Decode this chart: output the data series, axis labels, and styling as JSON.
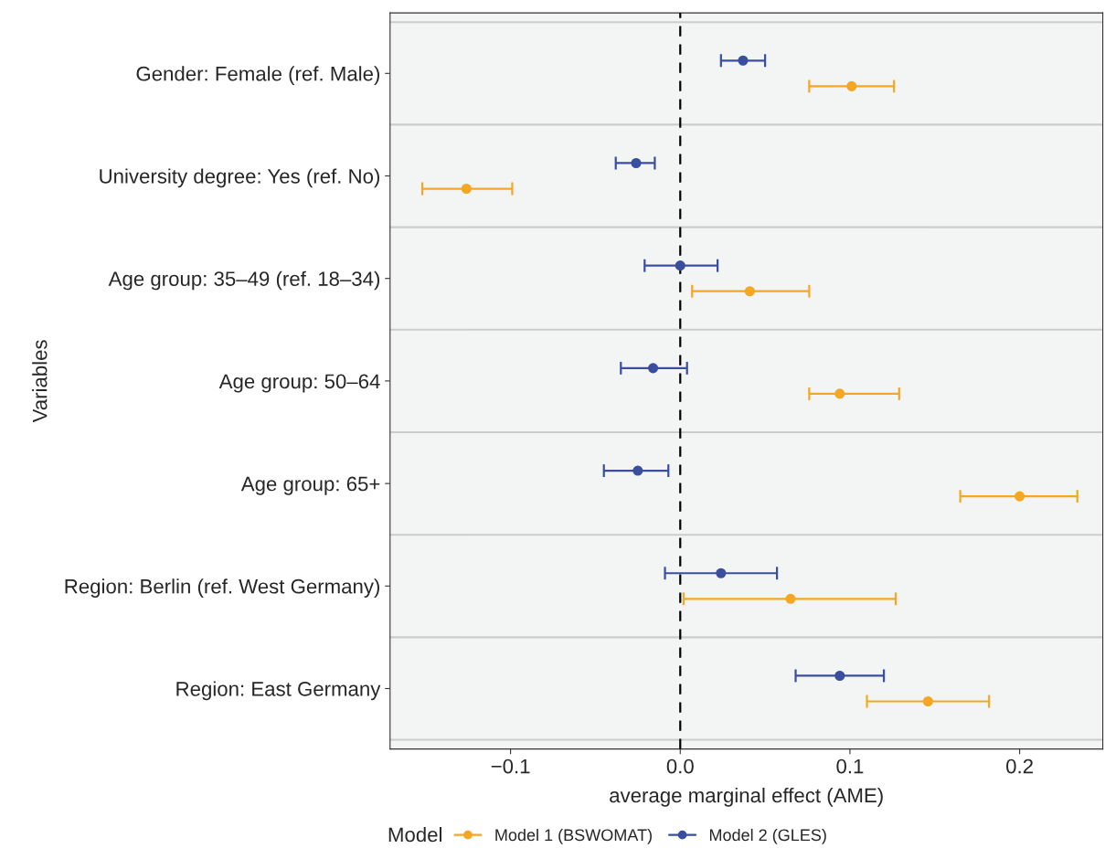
{
  "chart_data": {
    "type": "scatter",
    "orientation": "horizontal",
    "categories": [
      "Gender: Female (ref. Male)",
      "University degree: Yes (ref. No)",
      "Age group: 35–49 (ref. 18–34)",
      "Age group: 50–64",
      "Age group: 65+",
      "Region: Berlin (ref. West Germany)",
      "Region: East Germany"
    ],
    "series": [
      {
        "name": "Model 1 (BSWOMAT)",
        "color": "#f5a623",
        "values": [
          0.101,
          -0.126,
          0.041,
          0.094,
          0.2,
          0.065,
          0.146
        ],
        "errors": [
          [
            0.076,
            0.126
          ],
          [
            -0.152,
            -0.099
          ],
          [
            0.007,
            0.076
          ],
          [
            0.076,
            0.129
          ],
          [
            0.165,
            0.234
          ],
          [
            0.002,
            0.127
          ],
          [
            0.11,
            0.182
          ]
        ]
      },
      {
        "name": "Model 2 (GLES)",
        "color": "#3a4ea0",
        "values": [
          0.037,
          -0.026,
          0.0,
          -0.016,
          -0.025,
          0.024,
          0.094
        ],
        "errors": [
          [
            0.024,
            0.05
          ],
          [
            -0.038,
            -0.015
          ],
          [
            -0.021,
            0.022
          ],
          [
            -0.035,
            0.004
          ],
          [
            -0.045,
            -0.007
          ],
          [
            -0.009,
            0.057
          ],
          [
            0.068,
            0.12
          ]
        ]
      }
    ],
    "xlim": [
      -0.171,
      0.249
    ],
    "xticks": [
      {
        "value": -0.1,
        "label": "−0.1"
      },
      {
        "value": 0.0,
        "label": "0.0"
      },
      {
        "value": 0.1,
        "label": "0.1"
      },
      {
        "value": 0.2,
        "label": "0.2"
      }
    ],
    "xlabel": "average marginal effect (AME)",
    "ylabel": "Variables",
    "legend_title": "Model",
    "legend": "bottom",
    "ref_lines": [
      {
        "axis": "x",
        "value": 0,
        "color": "#000000",
        "line_style": "dashed"
      }
    ],
    "grid": "y",
    "marker": "circle",
    "line_style": "solid"
  }
}
